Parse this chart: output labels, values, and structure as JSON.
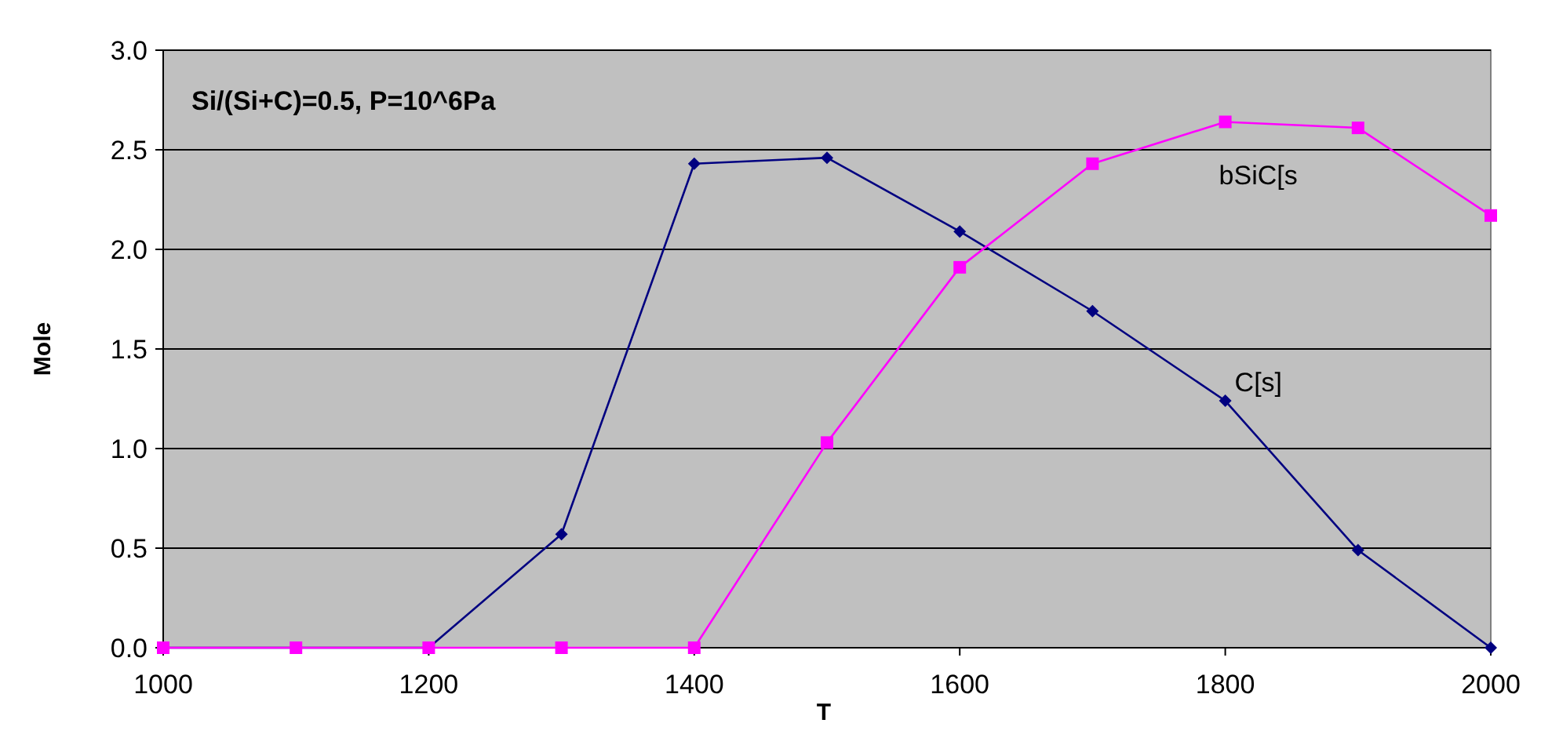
{
  "chart_data": {
    "type": "line",
    "title": "Si/(Si+C)=0.5, P=10^6Pa",
    "xlabel": "T",
    "ylabel": "Mole",
    "x": [
      1000,
      1100,
      1200,
      1300,
      1400,
      1500,
      1600,
      1700,
      1800,
      1900,
      2000
    ],
    "series": [
      {
        "name": "C[s]",
        "color": "#000080",
        "marker": "diamond",
        "values": [
          0,
          0,
          0,
          0.57,
          2.43,
          2.46,
          2.09,
          1.69,
          1.24,
          0.49,
          0
        ]
      },
      {
        "name": "bSiC[s",
        "color": "#ff00ff",
        "marker": "square",
        "values": [
          0,
          0,
          0,
          0,
          0,
          1.03,
          1.91,
          2.43,
          2.64,
          2.61,
          2.17
        ]
      }
    ],
    "xlim": [
      1000,
      2000
    ],
    "xticks": [
      1000,
      1200,
      1400,
      1600,
      1800,
      2000
    ],
    "ylim": [
      0,
      3
    ],
    "yticks": [
      {
        "value": 0,
        "label": "0.0"
      },
      {
        "value": 0.5,
        "label": "0.5"
      },
      {
        "value": 1,
        "label": "1.0"
      },
      {
        "value": 1.5,
        "label": "1.5"
      },
      {
        "value": 2,
        "label": "2.0"
      },
      {
        "value": 2.5,
        "label": "2.5"
      },
      {
        "value": 3,
        "label": "3.0"
      }
    ],
    "grid": "y",
    "line_style": "solid"
  }
}
